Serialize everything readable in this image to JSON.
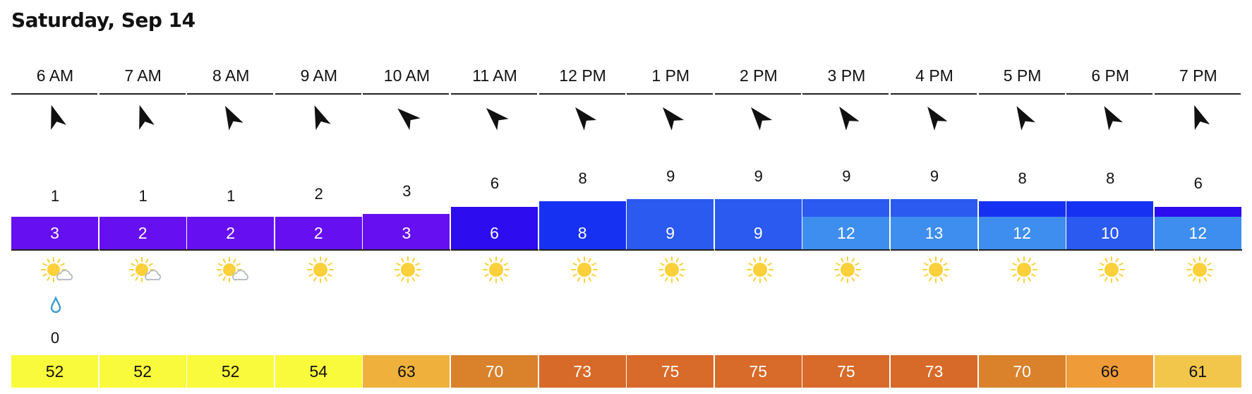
{
  "date": "Saturday, Sep 14",
  "hours": [
    {
      "time": "6 AM",
      "wind_dir_deg": -18,
      "wind": "1",
      "gust": "3",
      "wind_color": "#6610f2",
      "sky": "partly-cloudy-icon",
      "precip_icon": "raindrop-icon",
      "precip": "0",
      "temp": "52",
      "temp_color": "#fafa3c",
      "temp_text": "#111111"
    },
    {
      "time": "7 AM",
      "wind_dir_deg": -18,
      "wind": "1",
      "gust": "2",
      "wind_color": "#6610f2",
      "sky": "partly-cloudy-icon",
      "precip_icon": "",
      "precip": "",
      "temp": "52",
      "temp_color": "#fafa3c",
      "temp_text": "#111111"
    },
    {
      "time": "8 AM",
      "wind_dir_deg": -28,
      "wind": "1",
      "gust": "2",
      "wind_color": "#6610f2",
      "sky": "partly-cloudy-icon",
      "precip_icon": "",
      "precip": "",
      "temp": "52",
      "temp_color": "#fafa3c",
      "temp_text": "#111111"
    },
    {
      "time": "9 AM",
      "wind_dir_deg": -22,
      "wind": "2",
      "gust": "2",
      "wind_color": "#6610f2",
      "sky": "sun-icon",
      "precip_icon": "",
      "precip": "",
      "temp": "54",
      "temp_color": "#fafa3c",
      "temp_text": "#111111"
    },
    {
      "time": "10 AM",
      "wind_dir_deg": -48,
      "wind": "3",
      "gust": "3",
      "wind_color": "#6610f2",
      "sky": "sun-icon",
      "precip_icon": "",
      "precip": "",
      "temp": "63",
      "temp_color": "#f0b13c",
      "temp_text": "#111111"
    },
    {
      "time": "11 AM",
      "wind_dir_deg": -45,
      "wind": "6",
      "gust": "6",
      "wind_color": "#2d0cf0",
      "sky": "sun-icon",
      "precip_icon": "",
      "precip": "",
      "temp": "70",
      "temp_color": "#d9822b",
      "temp_text": "#ffffff"
    },
    {
      "time": "12 PM",
      "wind_dir_deg": -40,
      "wind": "8",
      "gust": "8",
      "wind_color": "#1631f2",
      "sky": "sun-icon",
      "precip_icon": "",
      "precip": "",
      "temp": "73",
      "temp_color": "#d76a28",
      "temp_text": "#ffffff"
    },
    {
      "time": "1 PM",
      "wind_dir_deg": -40,
      "wind": "9",
      "gust": "9",
      "wind_color": "#2b5af0",
      "sky": "sun-icon",
      "precip_icon": "",
      "precip": "",
      "temp": "75",
      "temp_color": "#d86a2a",
      "temp_text": "#ffffff"
    },
    {
      "time": "2 PM",
      "wind_dir_deg": -40,
      "wind": "9",
      "gust": "9",
      "wind_color": "#2b5af0",
      "sky": "sun-icon",
      "precip_icon": "",
      "precip": "",
      "temp": "75",
      "temp_color": "#d86a2a",
      "temp_text": "#ffffff"
    },
    {
      "time": "3 PM",
      "wind_dir_deg": -35,
      "wind": "9",
      "gust": "12",
      "wind_color": "#3e8ef0",
      "sky": "sun-icon",
      "precip_icon": "",
      "precip": "",
      "temp": "75",
      "temp_color": "#d86a2a",
      "temp_text": "#ffffff"
    },
    {
      "time": "4 PM",
      "wind_dir_deg": -35,
      "wind": "9",
      "gust": "13",
      "wind_color": "#3e8ef0",
      "sky": "sun-icon",
      "precip_icon": "",
      "precip": "",
      "temp": "73",
      "temp_color": "#d76a28",
      "temp_text": "#ffffff"
    },
    {
      "time": "5 PM",
      "wind_dir_deg": -30,
      "wind": "8",
      "gust": "12",
      "wind_color": "#3e8ef0",
      "sky": "sun-icon",
      "precip_icon": "",
      "precip": "",
      "temp": "70",
      "temp_color": "#d9822b",
      "temp_text": "#ffffff"
    },
    {
      "time": "6 PM",
      "wind_dir_deg": -30,
      "wind": "8",
      "gust": "10",
      "wind_color": "#2b5af0",
      "sky": "sun-icon",
      "precip_icon": "",
      "precip": "",
      "temp": "66",
      "temp_color": "#ee9b38",
      "temp_text": "#111111"
    },
    {
      "time": "7 PM",
      "wind_dir_deg": -20,
      "wind": "6",
      "gust": "12",
      "wind_color": "#3e8ef0",
      "sky": "sun-icon",
      "precip_icon": "",
      "precip": "",
      "temp": "61",
      "temp_color": "#f2c64a",
      "temp_text": "#111111"
    }
  ],
  "bar_colors": {
    "1": "#6610f2",
    "2": "#6610f2",
    "3": "#6610f2",
    "6": "#2d0cf0",
    "8": "#1631f2",
    "9": "#2b5af0"
  },
  "colors": {
    "sun": "#fcd03a",
    "cloud": "#b8bec6",
    "raindrop": "#3a9bd1",
    "wind_bar_light": "#3e8ef0"
  }
}
